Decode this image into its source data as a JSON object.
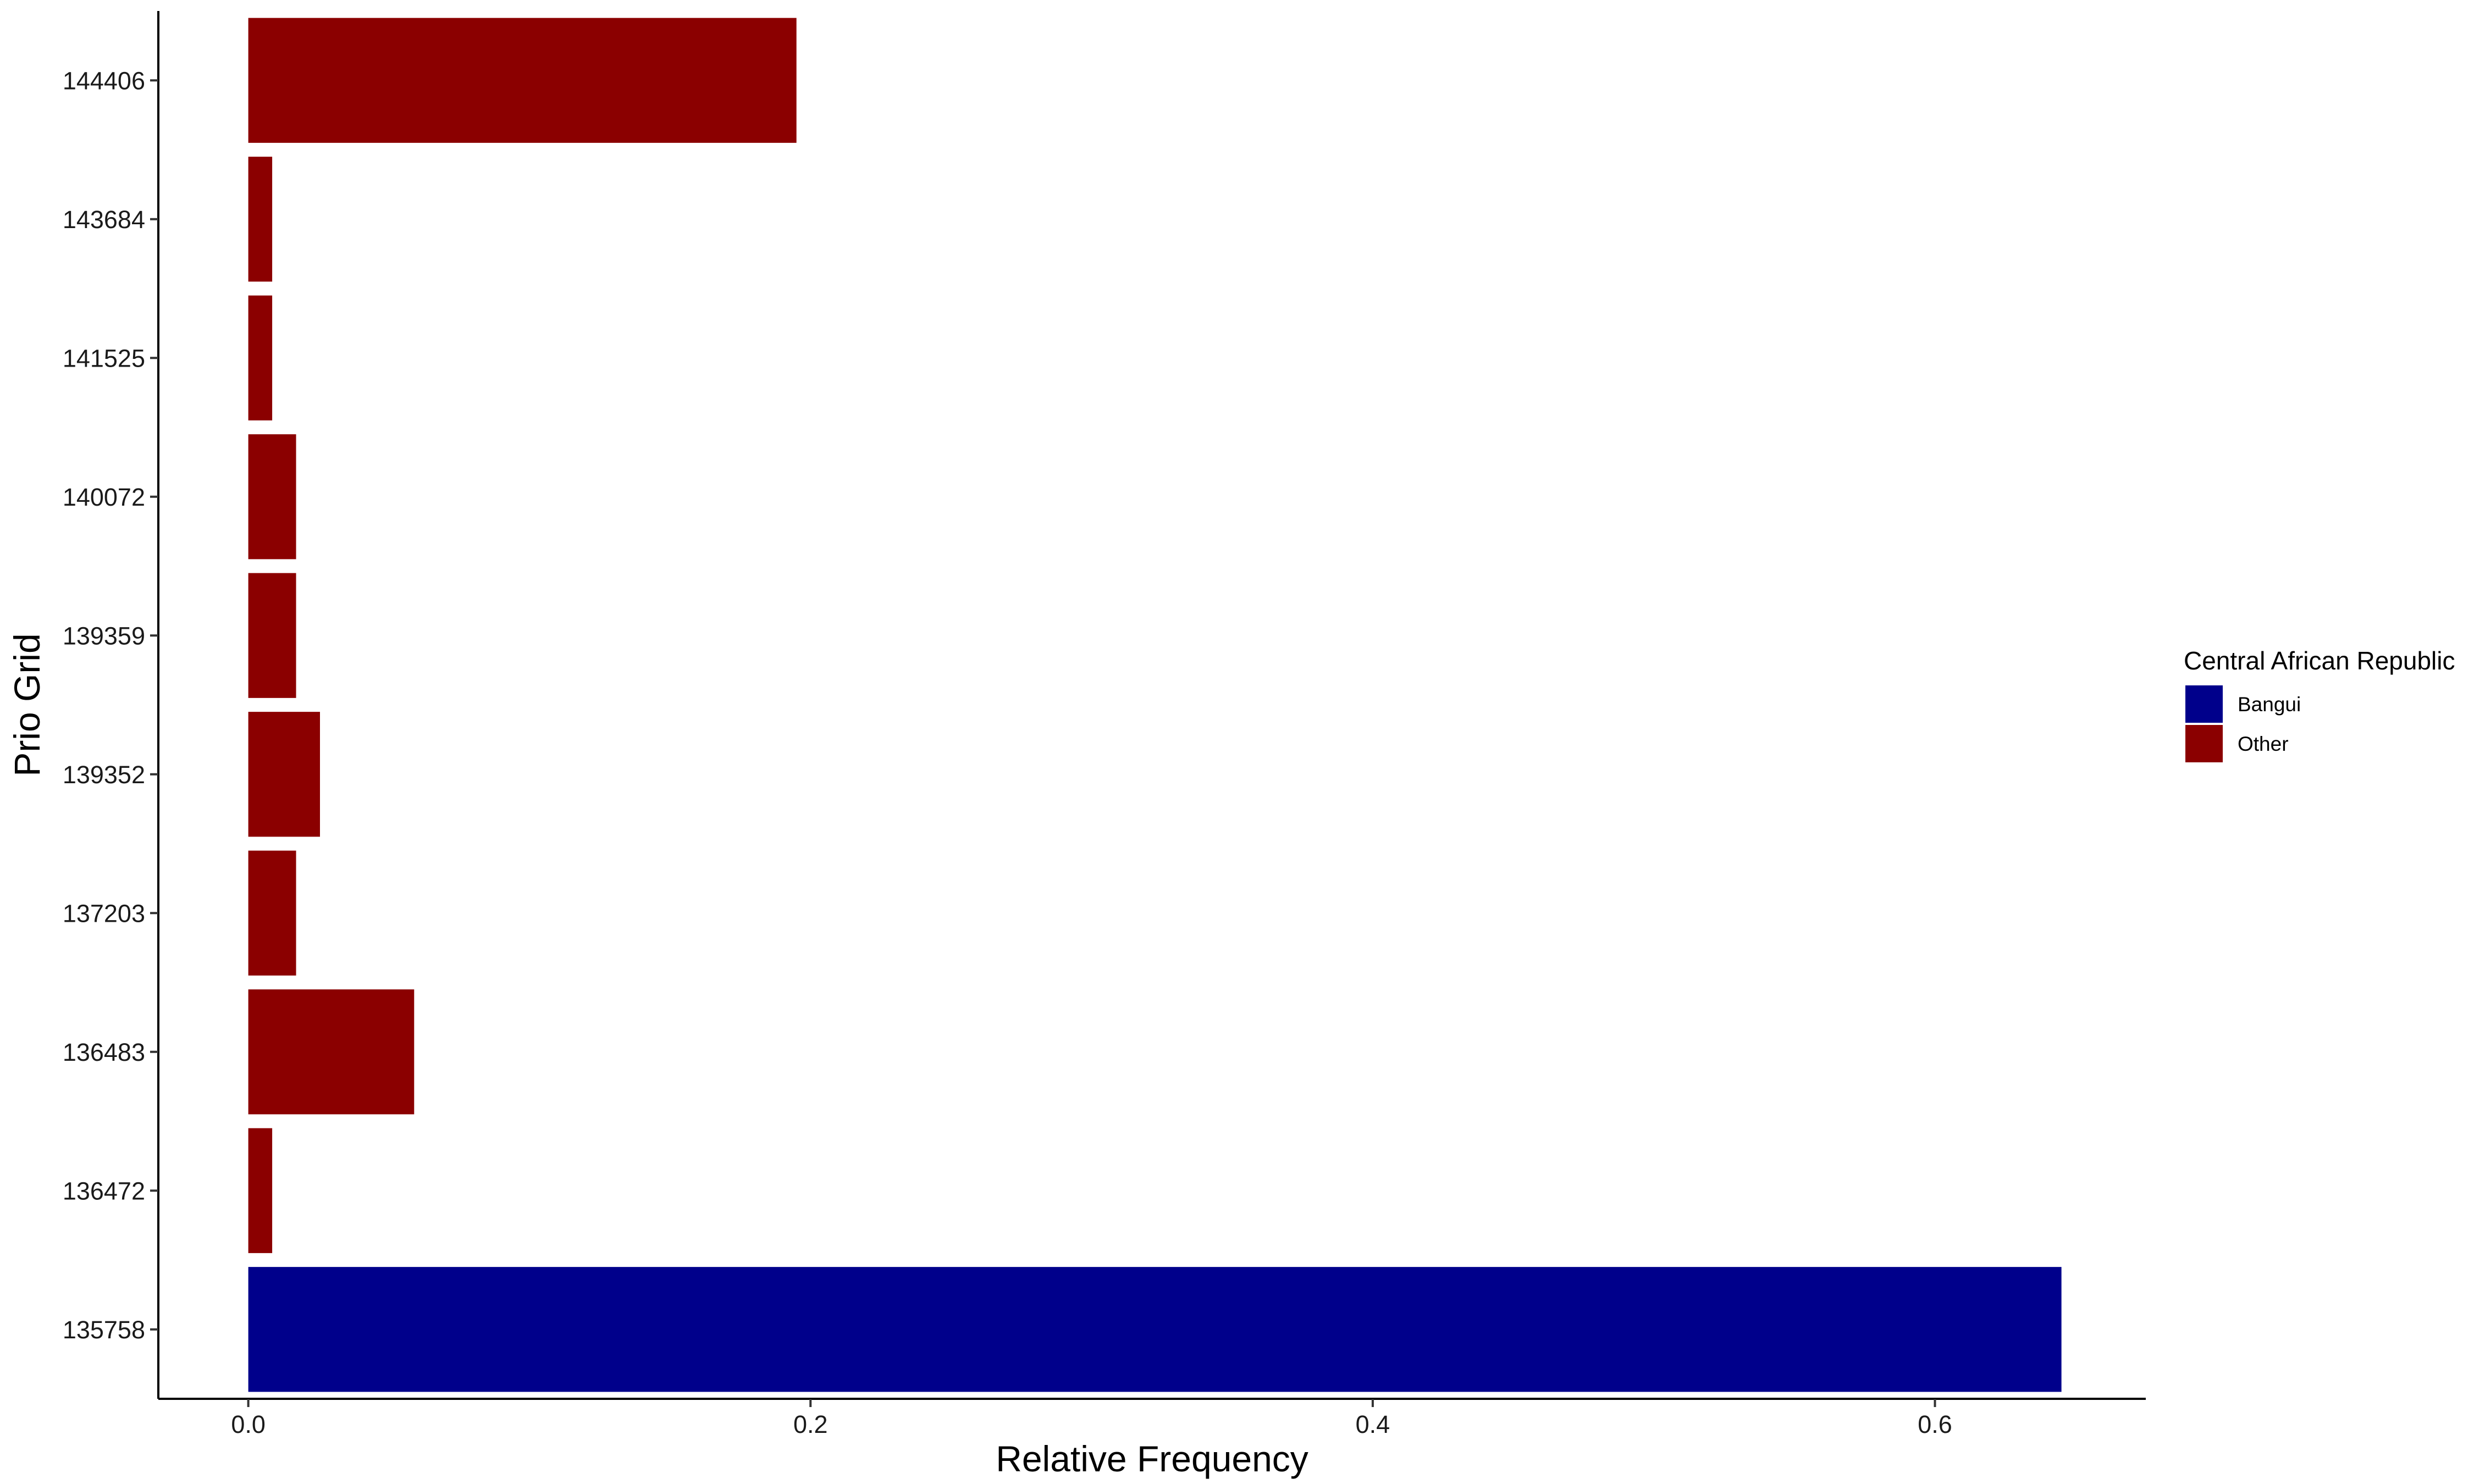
{
  "chart_data": {
    "type": "bar",
    "orientation": "horizontal",
    "title": "",
    "xlabel": "Relative Frequency",
    "ylabel": "Prio Grid",
    "xlim": [
      -0.032,
      0.675
    ],
    "x_ticks": [
      0.0,
      0.2,
      0.4,
      0.6
    ],
    "x_tick_labels": [
      "0.0",
      "0.2",
      "0.4",
      "0.6"
    ],
    "categories": [
      "135758",
      "136472",
      "136483",
      "137203",
      "139352",
      "139359",
      "140072",
      "141525",
      "143684",
      "144406"
    ],
    "values": [
      0.645,
      0.0085,
      0.059,
      0.017,
      0.0255,
      0.017,
      0.017,
      0.0085,
      0.0085,
      0.195
    ],
    "groups": [
      "Bangui",
      "Other",
      "Other",
      "Other",
      "Other",
      "Other",
      "Other",
      "Other",
      "Other",
      "Other"
    ],
    "grid": false,
    "legend": {
      "title": "Central African Republic",
      "position": "right",
      "items": [
        {
          "label": "Bangui",
          "color": "#00008B"
        },
        {
          "label": "Other",
          "color": "#8B0000"
        }
      ]
    }
  }
}
